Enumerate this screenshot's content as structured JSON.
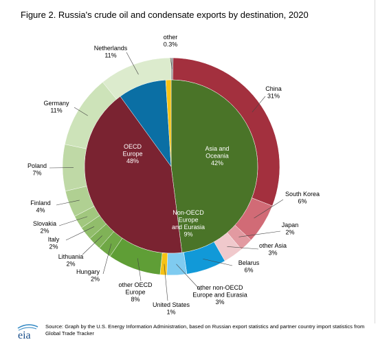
{
  "title": "Figure 2. Russia's crude oil and condensate exports by destination, 2020",
  "source": "Source: Graph by the U.S. Energy Information Administration, based on Russian export statistics and partner country import statistics from Global Trade Tracker",
  "logo_text": "eia",
  "chart_data": {
    "type": "pie",
    "subtype": "nested-donut",
    "unit": "percent",
    "inner_ring": [
      {
        "name": "OECD Europe",
        "label": [
          "OECD",
          "Europe"
        ],
        "value": 48,
        "value_label": "48%",
        "color": "#4a7428"
      },
      {
        "name": "Asia and Oceania",
        "label": [
          "Asia and",
          "Oceania"
        ],
        "value": 42,
        "value_label": "42%",
        "color": "#7a2331"
      },
      {
        "name": "Non-OECD Europe and Eurasia",
        "label": [
          "Non-OECD",
          "Europe",
          "and Eurasia"
        ],
        "value": 9,
        "value_label": "9%",
        "color": "#0b6fa4"
      },
      {
        "name": "United States",
        "label": [
          "United States"
        ],
        "value": 1,
        "value_label": "1%",
        "color": "#f6c215"
      }
    ],
    "outer_ring": [
      {
        "name": "other",
        "value": 0.3,
        "value_label": "0.3%",
        "color": "#8c8c8c"
      },
      {
        "name": "China",
        "value": 31,
        "value_label": "31%",
        "color": "#a3303e"
      },
      {
        "name": "South Korea",
        "value": 6,
        "value_label": "6%",
        "color": "#d16b76"
      },
      {
        "name": "Japan",
        "value": 2,
        "value_label": "2%",
        "color": "#e29aa1"
      },
      {
        "name": "other Asia",
        "value": 3,
        "value_label": "3%",
        "color": "#f0c9cc"
      },
      {
        "name": "Belarus",
        "value": 6,
        "value_label": "6%",
        "color": "#1199d8"
      },
      {
        "name": "other non-OECD Europe and Eurasia",
        "label": [
          "other non-OECD",
          "Europe and Eurasia"
        ],
        "value": 3,
        "value_label": "3%",
        "color": "#7fcbf0"
      },
      {
        "name": "United States",
        "value": 1,
        "value_label": "1%",
        "color": "#f6c215"
      },
      {
        "name": "other OECD Europe",
        "label": [
          "other OECD",
          "Europe"
        ],
        "value": 8,
        "value_label": "8%",
        "color": "#5f9e36"
      },
      {
        "name": "Hungary",
        "value": 2,
        "value_label": "2%",
        "color": "#6fa845"
      },
      {
        "name": "Lithuania",
        "value": 2,
        "value_label": "2%",
        "color": "#80b257"
      },
      {
        "name": "Italy",
        "value": 2,
        "value_label": "2%",
        "color": "#91bd6b"
      },
      {
        "name": "Slovakia",
        "value": 2,
        "value_label": "2%",
        "color": "#a1c77e"
      },
      {
        "name": "Finland",
        "value": 4,
        "value_label": "4%",
        "color": "#b0d092"
      },
      {
        "name": "Poland",
        "value": 7,
        "value_label": "7%",
        "color": "#bfd9a6"
      },
      {
        "name": "Germany",
        "value": 11,
        "value_label": "11%",
        "color": "#cde3b9"
      },
      {
        "name": "Netherlands",
        "value": 11,
        "value_label": "11%",
        "color": "#dcebcd"
      }
    ]
  }
}
